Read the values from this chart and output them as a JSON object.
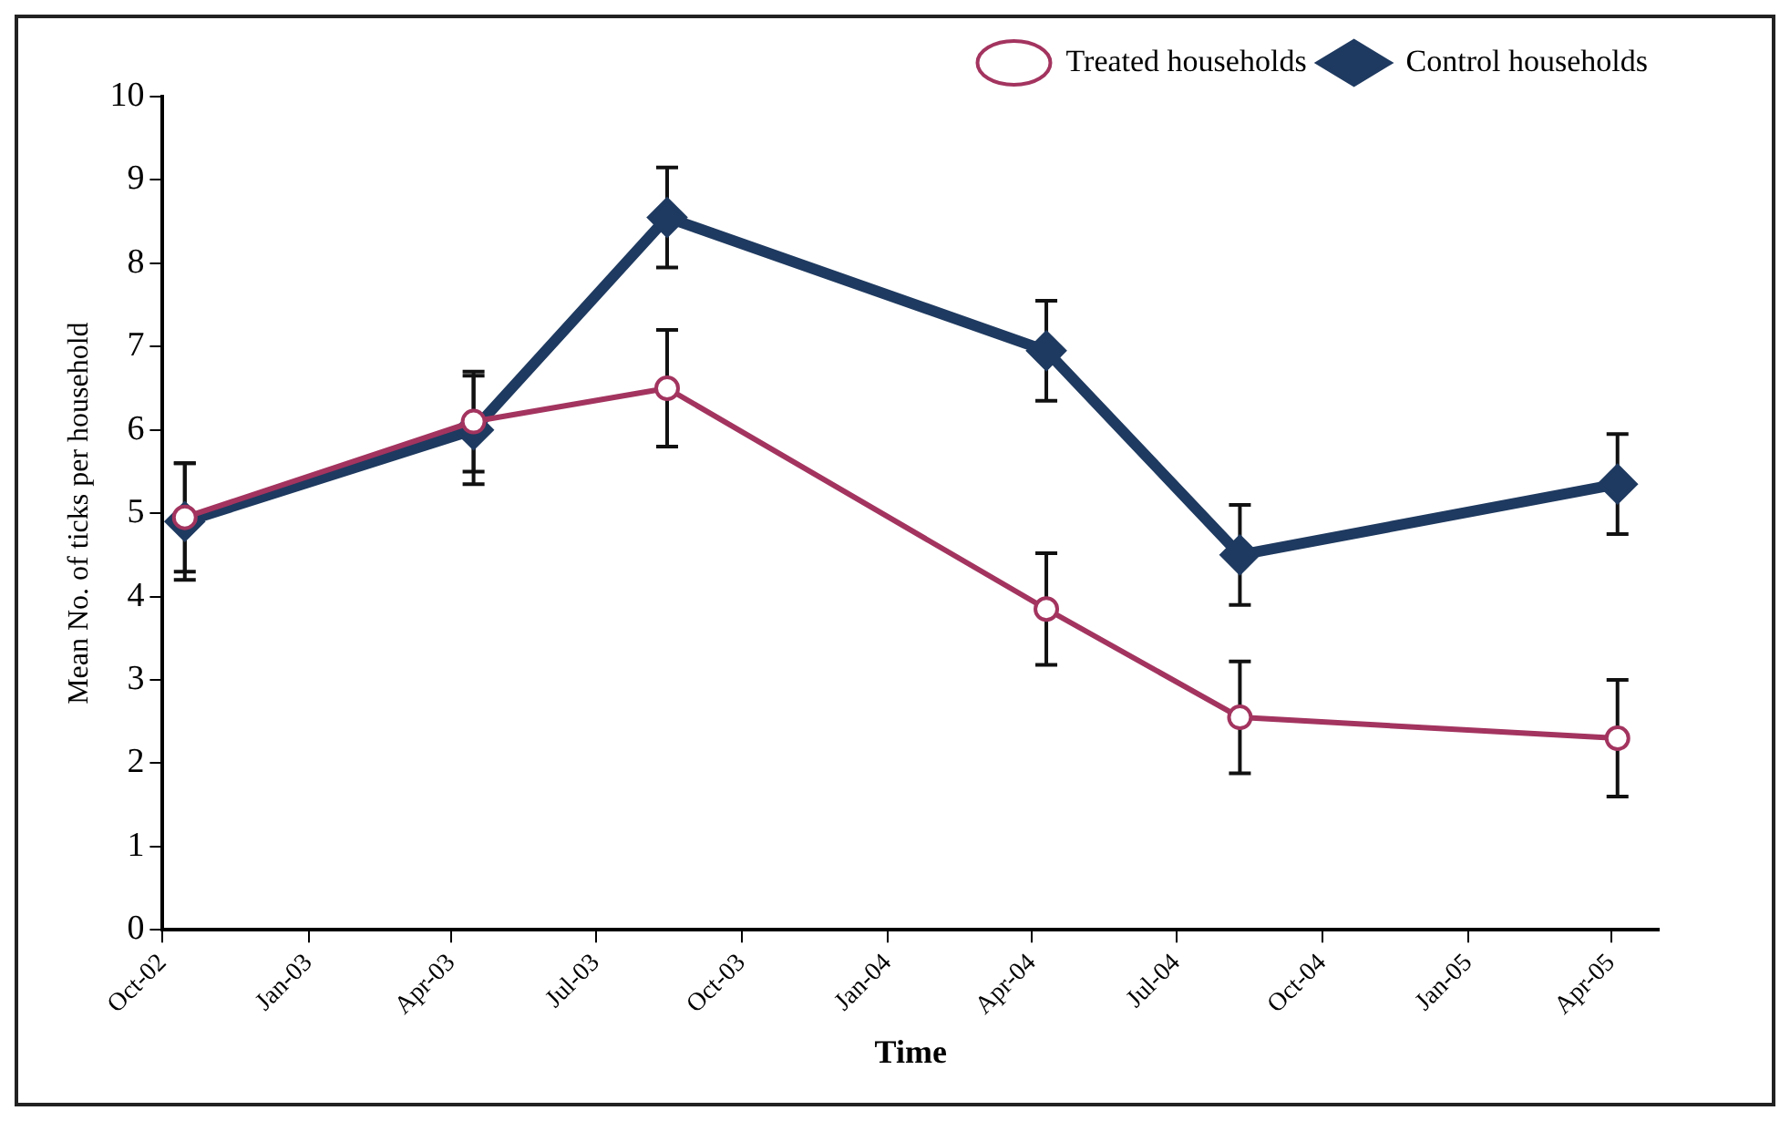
{
  "chart_data": {
    "type": "line",
    "xlabel": "Time",
    "ylabel": "Mean No. of ticks per household",
    "x": [
      "2002-10-15",
      "2003-04-15",
      "2003-08-15",
      "2004-04-10",
      "2004-08-10",
      "2005-04-05"
    ],
    "series": [
      {
        "name": "Treated households",
        "color": "#a3345f",
        "marker": "circle",
        "values": [
          4.95,
          6.1,
          6.5,
          3.85,
          2.55,
          2.3
        ],
        "errors": [
          0.65,
          0.6,
          0.7,
          0.67,
          0.67,
          0.7
        ]
      },
      {
        "name": "Control households",
        "color": "#1f3a60",
        "marker": "diamond",
        "values": [
          4.9,
          6.0,
          8.55,
          6.95,
          4.5,
          5.35
        ],
        "errors": [
          0.7,
          0.65,
          0.6,
          0.6,
          0.6,
          0.6
        ]
      }
    ],
    "xlim": [
      "2002-10-01",
      "2005-05-01"
    ],
    "xticks": [
      {
        "value": "2002-10-01",
        "label": "Oct-02"
      },
      {
        "value": "2003-01-01",
        "label": "Jan-03"
      },
      {
        "value": "2003-04-01",
        "label": "Apr-03"
      },
      {
        "value": "2003-07-01",
        "label": "Jul-03"
      },
      {
        "value": "2003-10-01",
        "label": "Oct-03"
      },
      {
        "value": "2004-01-01",
        "label": "Jan-04"
      },
      {
        "value": "2004-04-01",
        "label": "Apr-04"
      },
      {
        "value": "2004-07-01",
        "label": "Jul-04"
      },
      {
        "value": "2004-10-01",
        "label": "Oct-04"
      },
      {
        "value": "2005-01-01",
        "label": "Jan-05"
      },
      {
        "value": "2005-04-01",
        "label": "Apr-05"
      }
    ],
    "ylim": [
      0,
      10
    ],
    "yticks": [
      0,
      1,
      2,
      3,
      4,
      5,
      6,
      7,
      8,
      9,
      10
    ],
    "grid": false,
    "legend": "top right",
    "line_style": "solid"
  }
}
